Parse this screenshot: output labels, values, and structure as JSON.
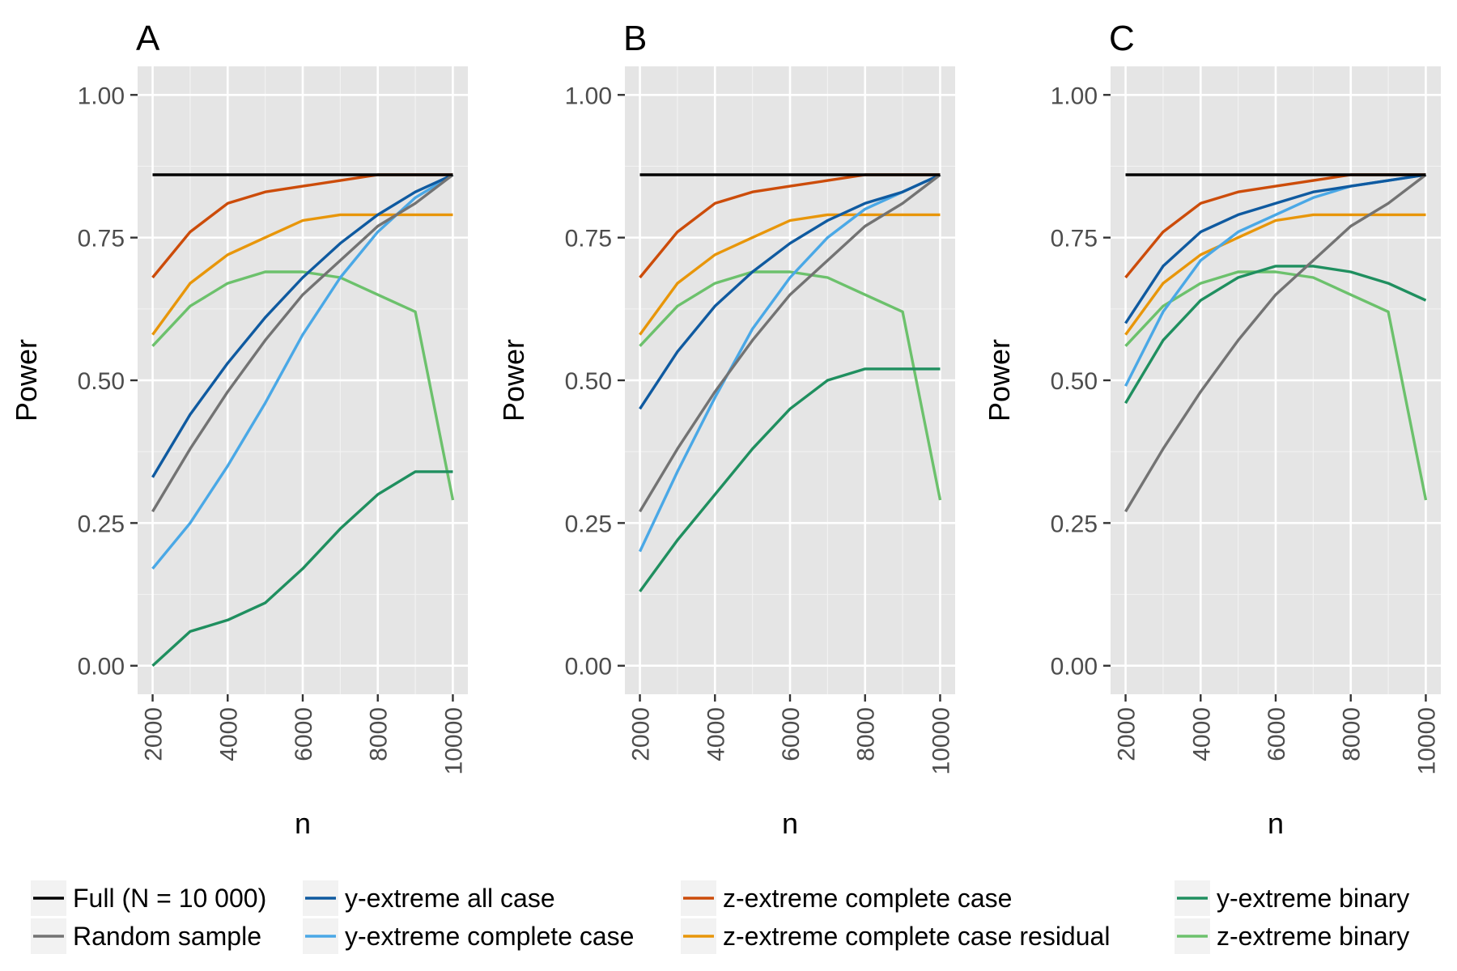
{
  "chart_data": {
    "type": "line",
    "layout": "three panels side by side with shared legend below",
    "x": [
      2000,
      3000,
      4000,
      5000,
      6000,
      7000,
      8000,
      9000,
      10000
    ],
    "xlabel": "n",
    "ylabel": "Power",
    "ylim": [
      -0.05,
      1.05
    ],
    "yticks": [
      0,
      0.25,
      0.5,
      0.75,
      1.0
    ],
    "yticklabels": [
      "0.00",
      "0.25",
      "0.50",
      "0.75",
      "1.00"
    ],
    "xticks": [
      2000,
      4000,
      6000,
      8000,
      10000
    ],
    "xticklabels": [
      "2000",
      "4000",
      "6000",
      "8000",
      "10000"
    ],
    "grid": true,
    "legend_position": "bottom",
    "legend": [
      {
        "key": "full",
        "label": "Full (N = 10 000)",
        "color": "#000000"
      },
      {
        "key": "random",
        "label": "Random sample",
        "color": "#737373"
      },
      {
        "key": "yall",
        "label": "y-extreme all case",
        "color": "#0f5aa0"
      },
      {
        "key": "ycc",
        "label": "y-extreme complete case",
        "color": "#4aa8e6"
      },
      {
        "key": "zcc",
        "label": "z-extreme complete case",
        "color": "#cc4c0a"
      },
      {
        "key": "zccres",
        "label": "z-extreme complete case residual",
        "color": "#e8960a"
      },
      {
        "key": "ybin",
        "label": "y-extreme binary",
        "color": "#1f8f5f"
      },
      {
        "key": "zbin",
        "label": "z-extreme binary",
        "color": "#6cc16c"
      }
    ],
    "panels": [
      {
        "title": "A",
        "series": [
          {
            "key": "zbin",
            "values": [
              0.56,
              0.63,
              0.67,
              0.69,
              0.69,
              0.68,
              0.65,
              0.62,
              0.29
            ]
          },
          {
            "key": "ybin",
            "values": [
              0.0,
              0.06,
              0.08,
              0.11,
              0.17,
              0.24,
              0.3,
              0.34,
              0.34
            ]
          },
          {
            "key": "zccres",
            "values": [
              0.58,
              0.67,
              0.72,
              0.75,
              0.78,
              0.79,
              0.79,
              0.79,
              0.79
            ]
          },
          {
            "key": "zcc",
            "values": [
              0.68,
              0.76,
              0.81,
              0.83,
              0.84,
              0.85,
              0.86,
              0.86,
              0.86
            ]
          },
          {
            "key": "ycc",
            "values": [
              0.17,
              0.25,
              0.35,
              0.46,
              0.58,
              0.68,
              0.76,
              0.82,
              0.86
            ]
          },
          {
            "key": "yall",
            "values": [
              0.33,
              0.44,
              0.53,
              0.61,
              0.68,
              0.74,
              0.79,
              0.83,
              0.86
            ]
          },
          {
            "key": "random",
            "values": [
              0.27,
              0.38,
              0.48,
              0.57,
              0.65,
              0.71,
              0.77,
              0.81,
              0.86
            ]
          },
          {
            "key": "full",
            "values": [
              0.86,
              0.86,
              0.86,
              0.86,
              0.86,
              0.86,
              0.86,
              0.86,
              0.86
            ]
          }
        ]
      },
      {
        "title": "B",
        "series": [
          {
            "key": "zbin",
            "values": [
              0.56,
              0.63,
              0.67,
              0.69,
              0.69,
              0.68,
              0.65,
              0.62,
              0.29
            ]
          },
          {
            "key": "ybin",
            "values": [
              0.13,
              0.22,
              0.3,
              0.38,
              0.45,
              0.5,
              0.52,
              0.52,
              0.52
            ]
          },
          {
            "key": "zccres",
            "values": [
              0.58,
              0.67,
              0.72,
              0.75,
              0.78,
              0.79,
              0.79,
              0.79,
              0.79
            ]
          },
          {
            "key": "zcc",
            "values": [
              0.68,
              0.76,
              0.81,
              0.83,
              0.84,
              0.85,
              0.86,
              0.86,
              0.86
            ]
          },
          {
            "key": "ycc",
            "values": [
              0.2,
              0.34,
              0.47,
              0.59,
              0.68,
              0.75,
              0.8,
              0.83,
              0.86
            ]
          },
          {
            "key": "yall",
            "values": [
              0.45,
              0.55,
              0.63,
              0.69,
              0.74,
              0.78,
              0.81,
              0.83,
              0.86
            ]
          },
          {
            "key": "random",
            "values": [
              0.27,
              0.38,
              0.48,
              0.57,
              0.65,
              0.71,
              0.77,
              0.81,
              0.86
            ]
          },
          {
            "key": "full",
            "values": [
              0.86,
              0.86,
              0.86,
              0.86,
              0.86,
              0.86,
              0.86,
              0.86,
              0.86
            ]
          }
        ]
      },
      {
        "title": "C",
        "series": [
          {
            "key": "zbin",
            "values": [
              0.56,
              0.63,
              0.67,
              0.69,
              0.69,
              0.68,
              0.65,
              0.62,
              0.29
            ]
          },
          {
            "key": "ybin",
            "values": [
              0.46,
              0.57,
              0.64,
              0.68,
              0.7,
              0.7,
              0.69,
              0.67,
              0.64
            ]
          },
          {
            "key": "zccres",
            "values": [
              0.58,
              0.67,
              0.72,
              0.75,
              0.78,
              0.79,
              0.79,
              0.79,
              0.79
            ]
          },
          {
            "key": "zcc",
            "values": [
              0.68,
              0.76,
              0.81,
              0.83,
              0.84,
              0.85,
              0.86,
              0.86,
              0.86
            ]
          },
          {
            "key": "ycc",
            "values": [
              0.49,
              0.62,
              0.71,
              0.76,
              0.79,
              0.82,
              0.84,
              0.85,
              0.86
            ]
          },
          {
            "key": "yall",
            "values": [
              0.6,
              0.7,
              0.76,
              0.79,
              0.81,
              0.83,
              0.84,
              0.85,
              0.86
            ]
          },
          {
            "key": "random",
            "values": [
              0.27,
              0.38,
              0.48,
              0.57,
              0.65,
              0.71,
              0.77,
              0.81,
              0.86
            ]
          },
          {
            "key": "full",
            "values": [
              0.86,
              0.86,
              0.86,
              0.86,
              0.86,
              0.86,
              0.86,
              0.86,
              0.86
            ]
          }
        ]
      }
    ]
  }
}
